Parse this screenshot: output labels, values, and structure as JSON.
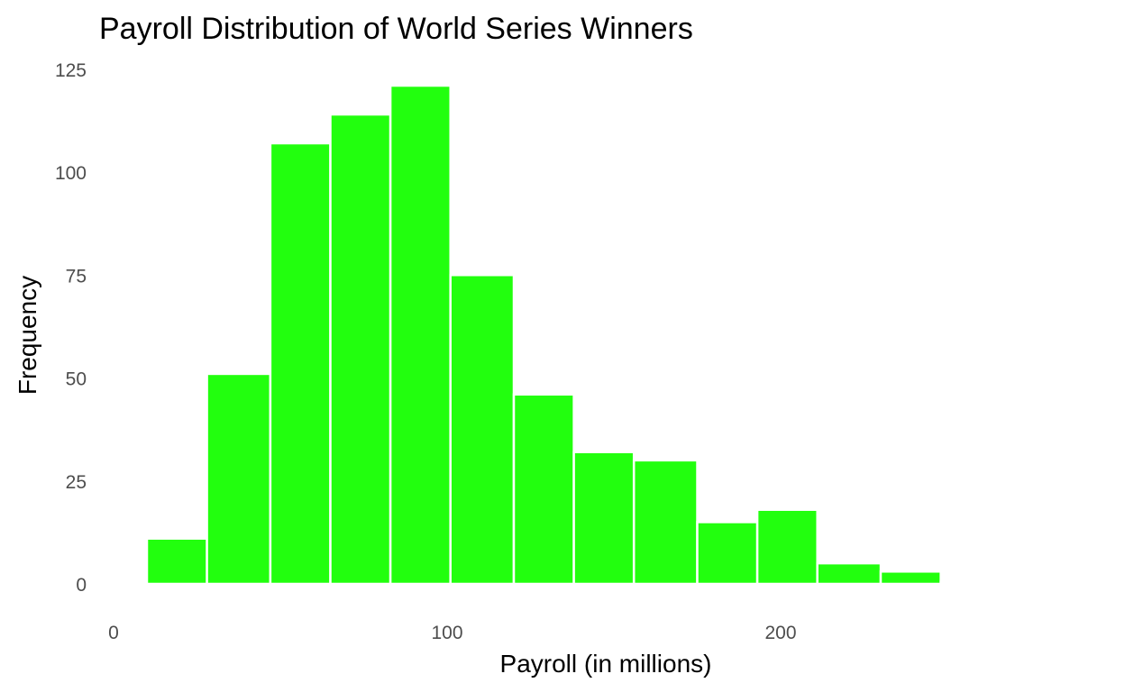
{
  "chart_data": {
    "type": "bar",
    "subtype": "histogram",
    "title": "Payroll Distribution of World Series Winners",
    "xlabel": "Payroll (in millions)",
    "ylabel": "Frequency",
    "xlim": [
      0,
      290
    ],
    "ylim": [
      0,
      125
    ],
    "x_ticks": [
      0,
      100,
      200
    ],
    "y_ticks": [
      0,
      25,
      50,
      75,
      100,
      125
    ],
    "grid": false,
    "bar_color": "#22ff0e",
    "bins": [
      {
        "x_start": 10,
        "x_end": 28,
        "count": 11
      },
      {
        "x_start": 28,
        "x_end": 47,
        "count": 51
      },
      {
        "x_start": 47,
        "x_end": 65,
        "count": 107
      },
      {
        "x_start": 65,
        "x_end": 83,
        "count": 114
      },
      {
        "x_start": 83,
        "x_end": 101,
        "count": 121
      },
      {
        "x_start": 101,
        "x_end": 120,
        "count": 75
      },
      {
        "x_start": 120,
        "x_end": 138,
        "count": 46
      },
      {
        "x_start": 138,
        "x_end": 156,
        "count": 32
      },
      {
        "x_start": 156,
        "x_end": 175,
        "count": 30
      },
      {
        "x_start": 175,
        "x_end": 193,
        "count": 15
      },
      {
        "x_start": 193,
        "x_end": 211,
        "count": 18
      },
      {
        "x_start": 211,
        "x_end": 230,
        "count": 5
      },
      {
        "x_start": 230,
        "x_end": 248,
        "count": 3
      },
      {
        "x_start": 248,
        "x_end": 266,
        "count": 0.5
      },
      {
        "x_start": 266,
        "x_end": 285,
        "count": 0.5
      }
    ]
  }
}
